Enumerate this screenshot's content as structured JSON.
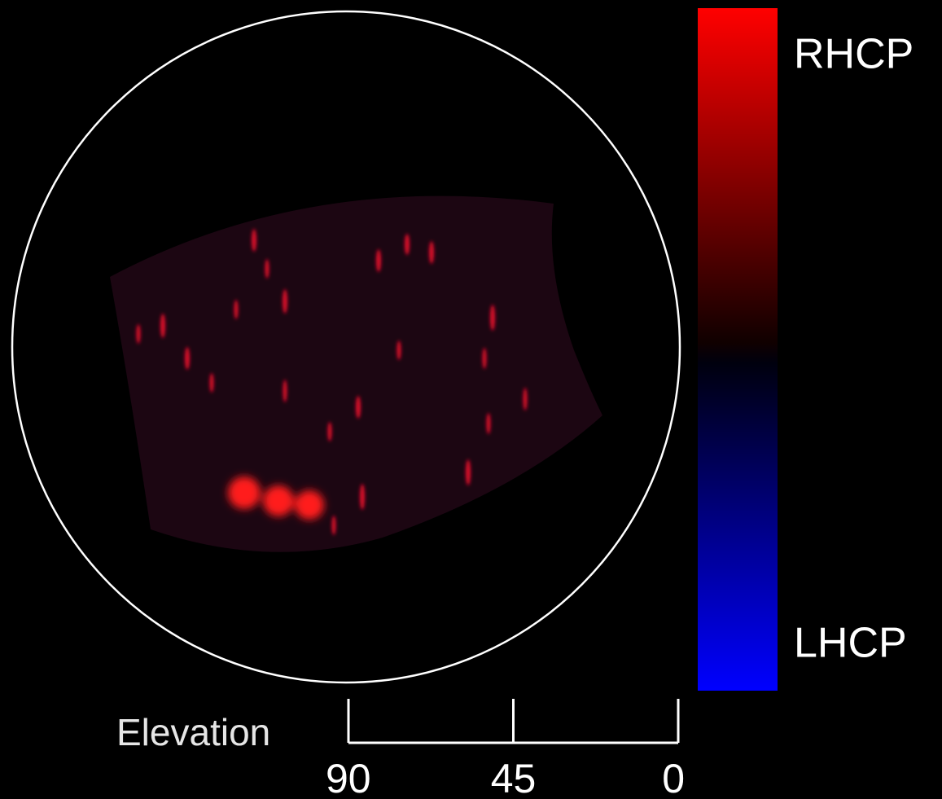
{
  "colorbar": {
    "top_label": "RHCP",
    "bottom_label": "LHCP"
  },
  "elevation_scale": {
    "label": "Elevation",
    "lim": [
      90,
      0
    ],
    "ticks": [
      90,
      45,
      0
    ]
  }
}
